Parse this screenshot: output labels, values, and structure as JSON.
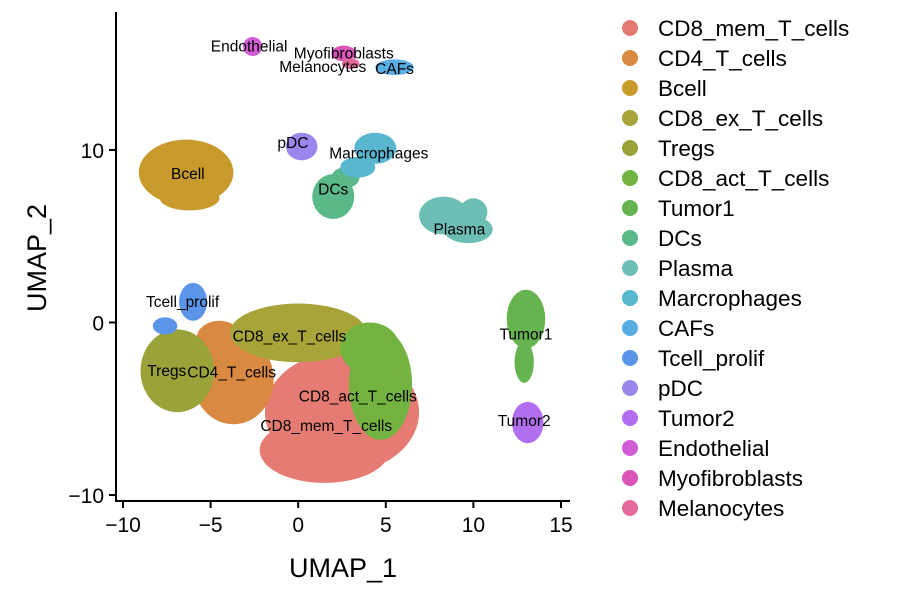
{
  "chart_data": {
    "type": "scatter",
    "xlabel": "UMAP_1",
    "ylabel": "UMAP_2",
    "xlim": [
      -10.5,
      15.5
    ],
    "ylim": [
      -10.5,
      17.8
    ],
    "x_ticks": [
      -10,
      -5,
      0,
      5,
      10,
      15
    ],
    "y_ticks": [
      -10,
      0,
      10
    ],
    "x_tick_labels": [
      "−10",
      "−5",
      "0",
      "5",
      "10",
      "15"
    ],
    "y_tick_labels": [
      "−10",
      "0",
      "10"
    ],
    "legend_position": "right",
    "grid": false,
    "clusters": [
      {
        "name": "CD8_mem_T_cells",
        "color": "#E57B73",
        "label_pos": [
          1.6,
          -6
        ],
        "shapes": [
          {
            "cx": 2.5,
            "cy": -5.2,
            "rx": 4.4,
            "ry": 3.5
          },
          {
            "cx": 1.5,
            "cy": -7.4,
            "rx": 3.7,
            "ry": 1.9
          },
          {
            "cx": 3.3,
            "cy": -2.6,
            "rx": 2.6,
            "ry": 2.0
          }
        ]
      },
      {
        "name": "CD4_T_cells",
        "color": "#D98941",
        "label_pos": [
          -3.8,
          -2.9
        ],
        "shapes": [
          {
            "cx": -3.7,
            "cy": -3.3,
            "rx": 2.3,
            "ry": 2.6
          },
          {
            "cx": -4.5,
            "cy": -0.9,
            "rx": 1.3,
            "ry": 1.0
          }
        ]
      },
      {
        "name": "Bcell",
        "color": "#C89A2C",
        "label_pos": [
          -6.3,
          8.6
        ],
        "shapes": [
          {
            "cx": -6.4,
            "cy": 8.7,
            "rx": 2.7,
            "ry": 1.9
          },
          {
            "cx": -6.2,
            "cy": 7.2,
            "rx": 1.7,
            "ry": 0.7
          }
        ]
      },
      {
        "name": "CD8_ex_T_cells",
        "color": "#A9A43A",
        "label_pos": [
          -0.5,
          -0.8
        ],
        "shapes": [
          {
            "cx": 0.0,
            "cy": -0.6,
            "rx": 3.9,
            "ry": 1.7
          }
        ]
      },
      {
        "name": "Tregs",
        "color": "#99A33A",
        "label_pos": [
          -7.5,
          -2.8
        ],
        "shapes": [
          {
            "cx": -6.9,
            "cy": -2.8,
            "rx": 2.1,
            "ry": 2.4
          }
        ]
      },
      {
        "name": "CD8_act_T_cells",
        "color": "#73B441",
        "label_pos": [
          3.4,
          -4.3
        ],
        "shapes": [
          {
            "cx": 4.7,
            "cy": -3.6,
            "rx": 1.8,
            "ry": 3.2
          },
          {
            "cx": 4.1,
            "cy": -1.5,
            "rx": 1.7,
            "ry": 1.5
          }
        ]
      },
      {
        "name": "Tumor1",
        "color": "#66B44F",
        "label_pos": [
          13.0,
          -0.7
        ],
        "shapes": [
          {
            "cx": 13.0,
            "cy": 0.2,
            "rx": 1.1,
            "ry": 1.7
          },
          {
            "cx": 12.9,
            "cy": -2.3,
            "rx": 0.55,
            "ry": 1.2
          }
        ]
      },
      {
        "name": "DCs",
        "color": "#5BB888",
        "label_pos": [
          2.0,
          7.7
        ],
        "shapes": [
          {
            "cx": 2.0,
            "cy": 7.3,
            "rx": 1.2,
            "ry": 1.3
          },
          {
            "cx": 2.7,
            "cy": 8.4,
            "rx": 0.8,
            "ry": 0.6
          }
        ]
      },
      {
        "name": "Plasma",
        "color": "#6DBFB5",
        "label_pos": [
          9.2,
          5.4
        ],
        "shapes": [
          {
            "cx": 8.3,
            "cy": 6.2,
            "rx": 1.4,
            "ry": 1.1
          },
          {
            "cx": 9.7,
            "cy": 5.4,
            "rx": 1.4,
            "ry": 0.8
          },
          {
            "cx": 10.0,
            "cy": 6.4,
            "rx": 0.8,
            "ry": 0.8
          }
        ]
      },
      {
        "name": "Marcrophages",
        "color": "#58B7CF",
        "label_pos": [
          4.6,
          9.8
        ],
        "shapes": [
          {
            "cx": 4.4,
            "cy": 10.1,
            "rx": 1.2,
            "ry": 0.9
          },
          {
            "cx": 3.4,
            "cy": 9.0,
            "rx": 1.0,
            "ry": 0.6
          }
        ]
      },
      {
        "name": "CAFs",
        "color": "#58ADE3",
        "label_pos": [
          5.5,
          14.7
        ],
        "shapes": [
          {
            "cx": 5.5,
            "cy": 14.8,
            "rx": 1.1,
            "ry": 0.45
          }
        ]
      },
      {
        "name": "Tcell_prolif",
        "color": "#5B95EA",
        "label_pos": [
          -6.6,
          1.2
        ],
        "shapes": [
          {
            "cx": -6.0,
            "cy": 1.2,
            "rx": 0.8,
            "ry": 1.1
          },
          {
            "cx": -7.6,
            "cy": -0.2,
            "rx": 0.7,
            "ry": 0.5
          }
        ]
      },
      {
        "name": "pDC",
        "color": "#9B86EE",
        "label_pos": [
          -0.3,
          10.4
        ],
        "shapes": [
          {
            "cx": 0.2,
            "cy": 10.2,
            "rx": 0.9,
            "ry": 0.8
          }
        ]
      },
      {
        "name": "Tumor2",
        "color": "#B16EEE",
        "label_pos": [
          12.9,
          -5.7
        ],
        "shapes": [
          {
            "cx": 13.1,
            "cy": -5.8,
            "rx": 0.9,
            "ry": 1.2
          }
        ]
      },
      {
        "name": "Endothelial",
        "color": "#D25ED7",
        "label_pos": [
          -2.8,
          16.0
        ],
        "shapes": [
          {
            "cx": -2.6,
            "cy": 16.0,
            "rx": 0.55,
            "ry": 0.55
          }
        ]
      },
      {
        "name": "Myofibroblasts",
        "color": "#DA55B9",
        "label_pos": [
          2.6,
          15.6
        ],
        "shapes": [
          {
            "cx": 2.6,
            "cy": 15.6,
            "rx": 0.7,
            "ry": 0.45
          }
        ]
      },
      {
        "name": "Melanocytes",
        "color": "#E36A9B",
        "label_pos": [
          1.4,
          14.8
        ],
        "shapes": [
          {
            "cx": 3.0,
            "cy": 15.0,
            "rx": 0.5,
            "ry": 0.3
          }
        ]
      }
    ]
  }
}
